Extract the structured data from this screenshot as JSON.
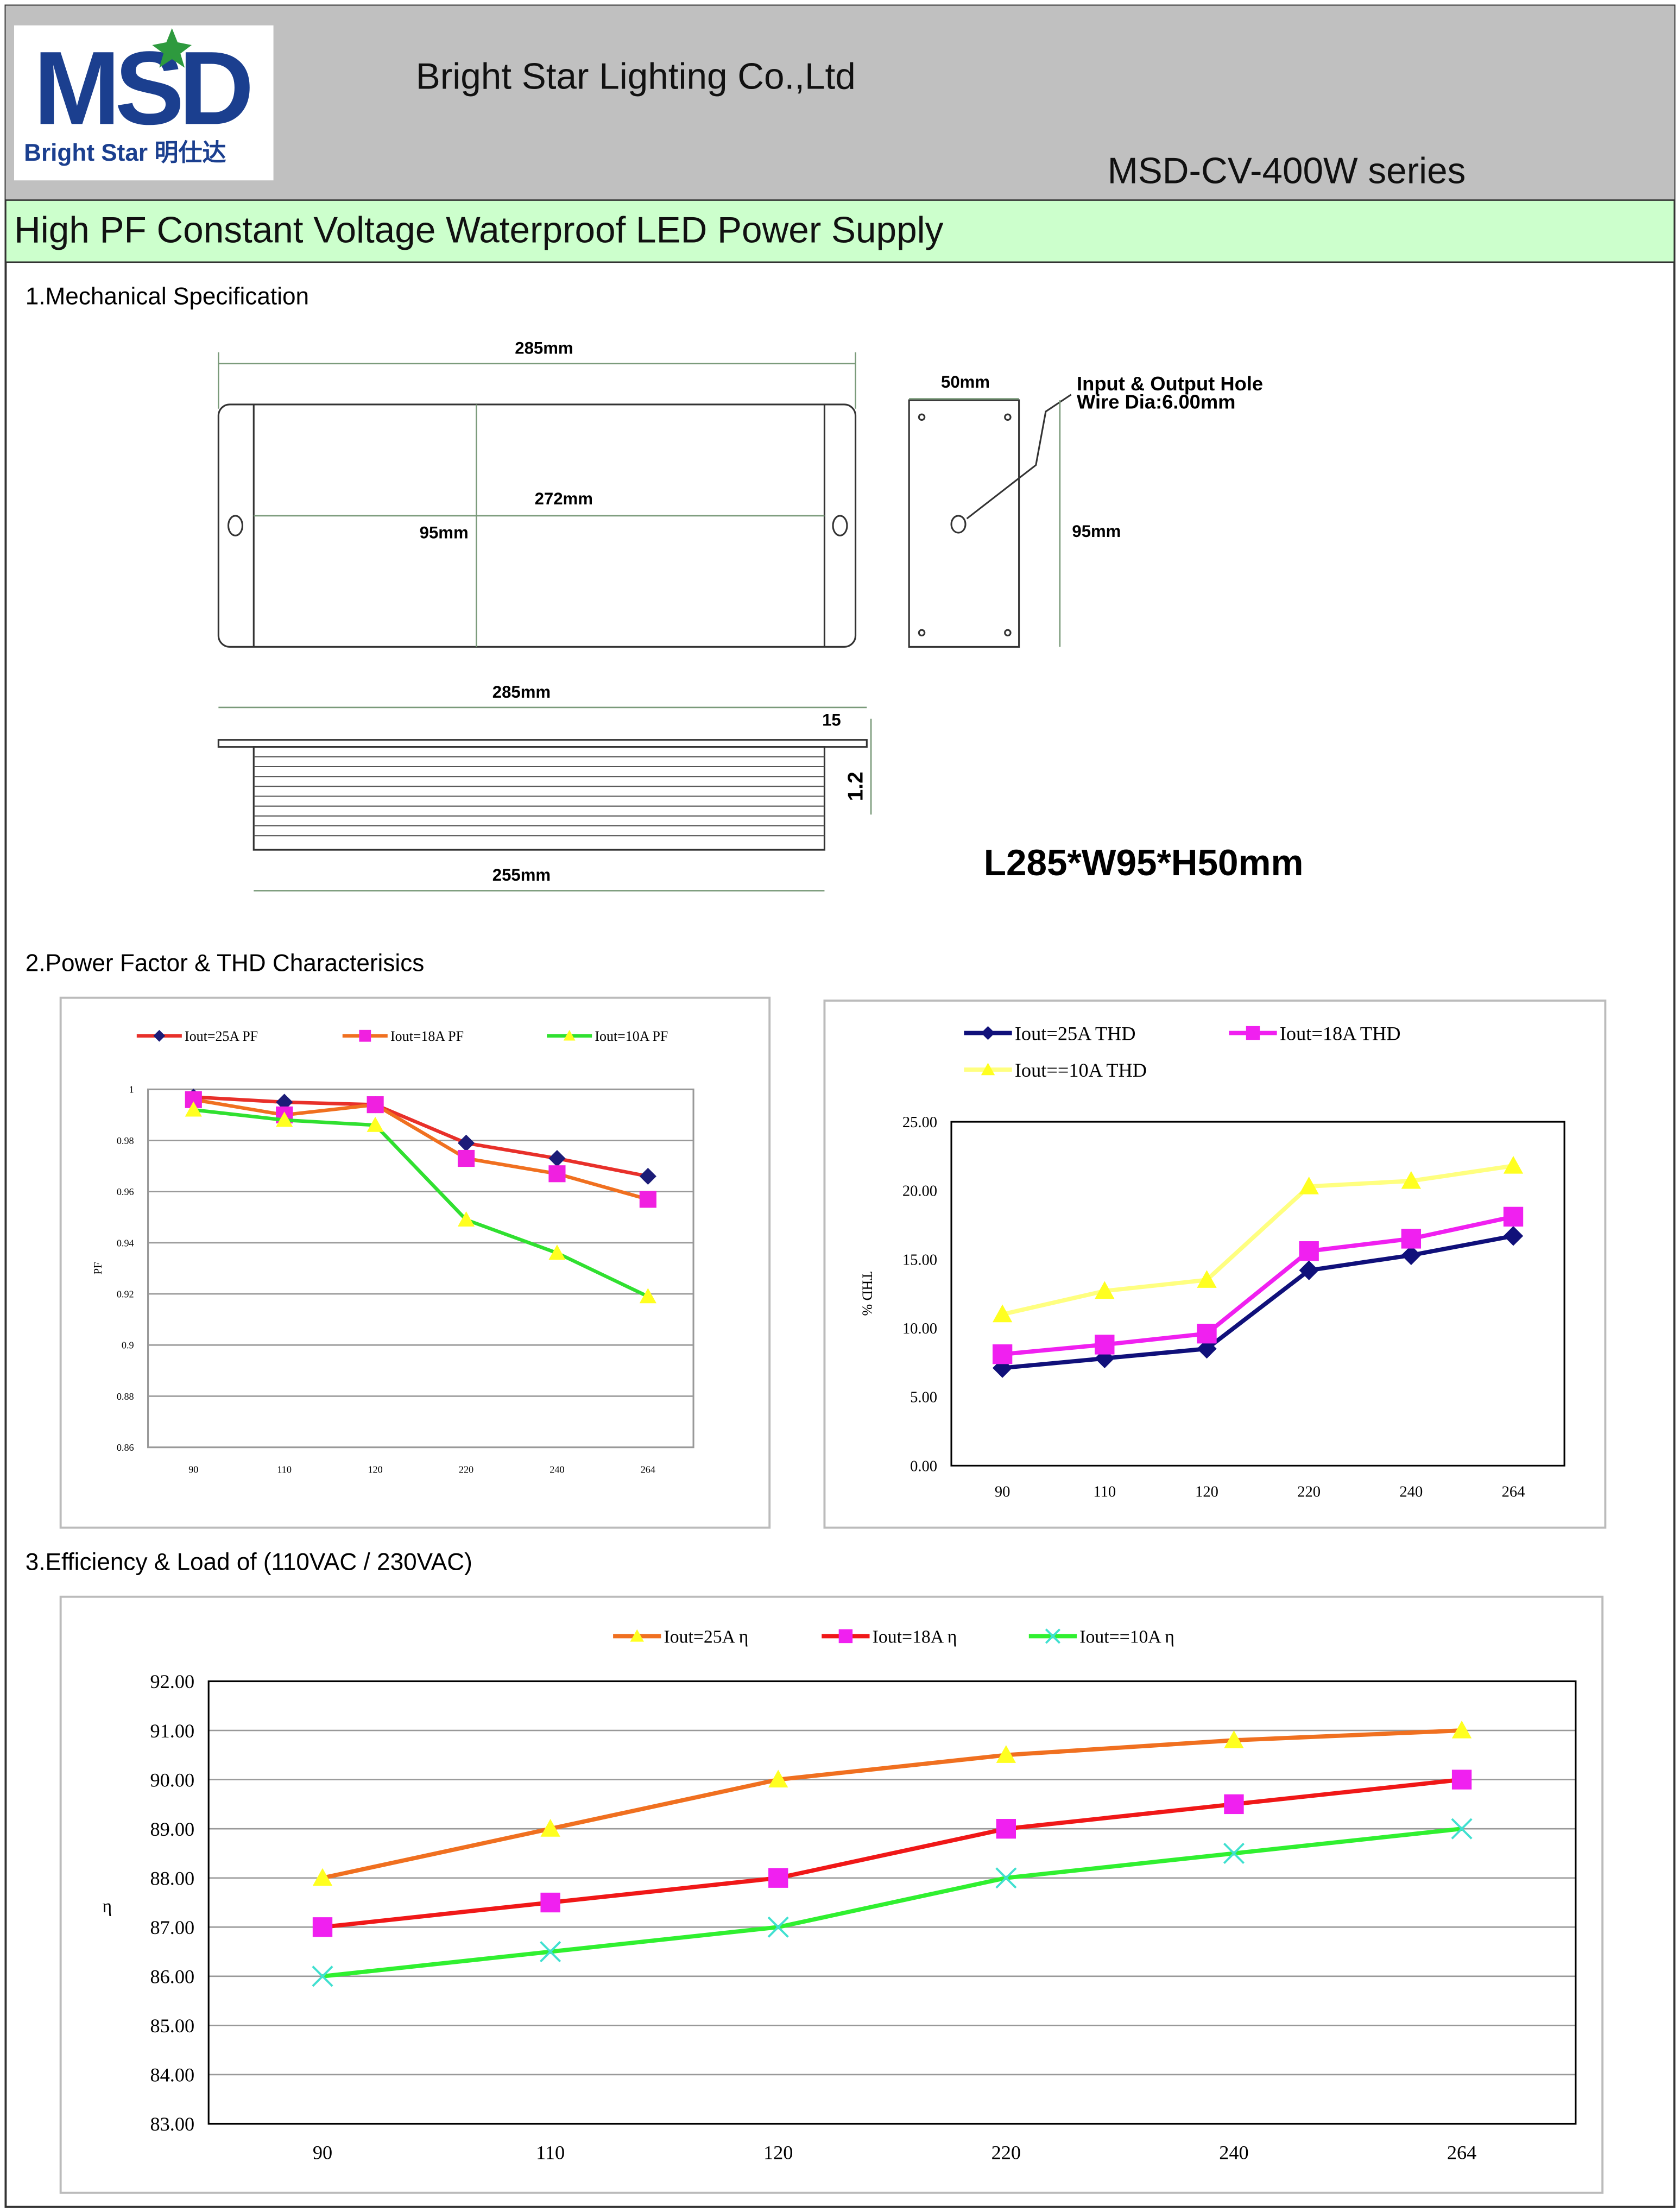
{
  "header": {
    "logo_text": "MSD",
    "logo_subtitle": "Bright Star 明仕达",
    "company": "Bright Star Lighting Co.,Ltd",
    "series": "MSD-CV-400W series",
    "title": "High PF Constant Voltage Waterproof LED Power Supply"
  },
  "sections": [
    "1.Mechanical Specification",
    "2.Power Factor & THD Characterisics",
    "3.Efficiency & Load of (110VAC / 230VAC)"
  ],
  "mechanical": {
    "top_length": "285mm",
    "top_inner": "272mm",
    "top_width": "95mm",
    "side_width": "50mm",
    "hole_note": "Input & Output Hole",
    "hole_dia": "Wire Dia:6.00mm",
    "side_height": "95mm",
    "bottom_length": "285mm",
    "flange": "15",
    "flange_thick": "1.2",
    "bottom_inner": "255mm",
    "size": "L285*W95*H50mm"
  },
  "chart_data": [
    {
      "type": "line",
      "y_label": "PF",
      "categories": [
        "90",
        "110",
        "120",
        "220",
        "240",
        "264"
      ],
      "ylim": [
        0.86,
        1
      ],
      "yticks": [
        0.86,
        0.88,
        0.9,
        0.92,
        0.94,
        0.96,
        0.98,
        1
      ],
      "grid": true,
      "series": [
        {
          "name": "Iout=25A PF",
          "color": "#e8302a",
          "marker_color": "#1c1c78",
          "marker": "diamond",
          "values": [
            0.997,
            0.995,
            0.994,
            0.979,
            0.973,
            0.966
          ]
        },
        {
          "name": "Iout=18A PF",
          "color": "#f07020",
          "marker_color": "#f020e0",
          "marker": "square",
          "values": [
            0.996,
            0.99,
            0.994,
            0.973,
            0.967,
            0.957
          ]
        },
        {
          "name": "Iout=10A PF",
          "color": "#30e030",
          "marker_color": "#ffff20",
          "marker": "triangle",
          "values": [
            0.992,
            0.988,
            0.986,
            0.949,
            0.936,
            0.919
          ]
        }
      ]
    },
    {
      "type": "line",
      "y_label": "THD %",
      "categories": [
        "90",
        "110",
        "120",
        "220",
        "240",
        "264"
      ],
      "ylim": [
        0,
        25
      ],
      "yticks": [
        {
          "value": 0,
          "label": "0.00"
        },
        {
          "value": 5,
          "label": "5.00"
        },
        {
          "value": 10,
          "label": "10.00"
        },
        {
          "value": 15,
          "label": "15.00"
        },
        {
          "value": 20,
          "label": "20.00"
        },
        {
          "value": 25,
          "label": "25.00"
        }
      ],
      "grid": false,
      "series": [
        {
          "name": "Iout=25A THD",
          "color": "#10107a",
          "marker_color": "#10107a",
          "marker": "diamond",
          "values": [
            7.1,
            7.8,
            8.5,
            14.2,
            15.3,
            16.7
          ]
        },
        {
          "name": "Iout=18A THD",
          "color": "#f020f0",
          "marker_color": "#f020f0",
          "marker": "square",
          "values": [
            8.1,
            8.8,
            9.6,
            15.6,
            16.5,
            18.1
          ]
        },
        {
          "name": "Iout==10A THD",
          "color": "#ffff80",
          "marker_color": "#ffff20",
          "marker": "triangle",
          "values": [
            11.0,
            12.7,
            13.5,
            20.3,
            20.7,
            21.8
          ]
        }
      ]
    },
    {
      "type": "line",
      "y_label": "η",
      "categories": [
        "90",
        "110",
        "120",
        "220",
        "240",
        "264"
      ],
      "ylim": [
        83,
        92
      ],
      "yticks": [
        {
          "value": 83,
          "label": "83.00"
        },
        {
          "value": 84,
          "label": "84.00"
        },
        {
          "value": 85,
          "label": "85.00"
        },
        {
          "value": 86,
          "label": "86.00"
        },
        {
          "value": 87,
          "label": "87.00"
        },
        {
          "value": 88,
          "label": "88.00"
        },
        {
          "value": 89,
          "label": "89.00"
        },
        {
          "value": 90,
          "label": "90.00"
        },
        {
          "value": 91,
          "label": "91.00"
        },
        {
          "value": 92,
          "label": "92.00"
        }
      ],
      "grid": true,
      "series": [
        {
          "name": "Iout=25A η",
          "color": "#f07020",
          "marker_color": "#ffff20",
          "marker": "triangle",
          "values": [
            88,
            89,
            90,
            90.5,
            90.8,
            91
          ]
        },
        {
          "name": "Iout=18A η",
          "color": "#f01818",
          "marker_color": "#f020f0",
          "marker": "square",
          "values": [
            87,
            87.5,
            88,
            89,
            89.5,
            90
          ]
        },
        {
          "name": "Iout==10A η",
          "color": "#30f030",
          "marker_color": "#40e0d0",
          "marker": "x",
          "values": [
            86,
            86.5,
            87,
            88,
            88.5,
            89
          ]
        }
      ]
    }
  ]
}
